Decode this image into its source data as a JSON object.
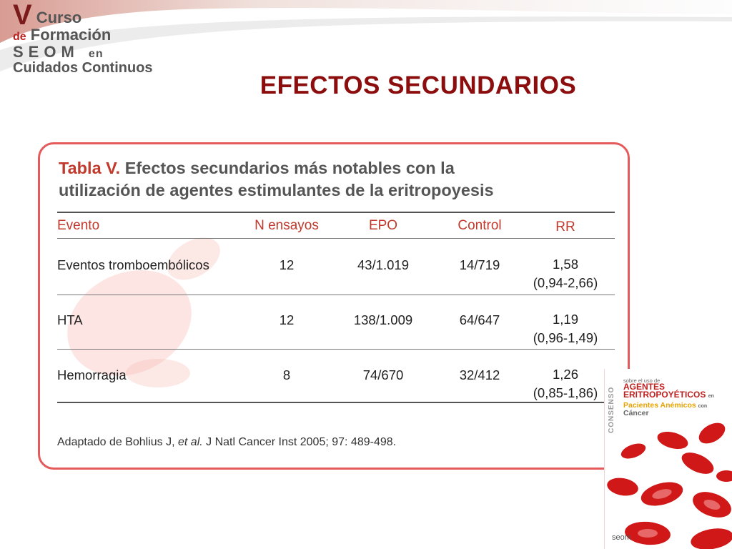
{
  "logo": {
    "line1_big": "V",
    "line1_word": "Curso",
    "line2_small": "de",
    "line2_word": "Formación",
    "line3_word": "SEOM",
    "line3_small": "en",
    "line4": "Cuidados Continuos"
  },
  "slide_title": "EFECTOS SECUNDARIOS",
  "table": {
    "title_number": "Tabla V.",
    "title_line1": "Efectos secundarios más notables con la",
    "title_line2": "utilización de agentes estimulantes de la eritropoyesis",
    "headers": [
      "Evento",
      "N ensayos",
      "EPO",
      "Control",
      "RR"
    ],
    "rows": [
      {
        "evento": "Eventos tromboembólicos",
        "n": "12",
        "epo": "43/1.019",
        "control": "14/719",
        "rr": "1,58",
        "ci": "(0,94-2,66)"
      },
      {
        "evento": "HTA",
        "n": "12",
        "epo": "138/1.009",
        "control": "64/647",
        "rr": "1,19",
        "ci": "(0,96-1,49)"
      },
      {
        "evento": "Hemorragia",
        "n": "8",
        "epo": "74/670",
        "control": "32/412",
        "rr": "1,26",
        "ci": "(0,85-1,86)"
      }
    ],
    "source_prefix": "Adaptado de Bohlius J,",
    "source_etal": "et al.",
    "source_suffix": "J Natl Cancer Inst 2005; 97: 489-498."
  },
  "book": {
    "vertical": "CONSENSO",
    "line1": "sobre el uso de",
    "line2a": "AGENTES",
    "line2b": "ERITROPOYÉTICOS",
    "line2b_small": "en",
    "line3": "Pacientes Anémicos",
    "line3_small": "con",
    "line4": "Cáncer",
    "seal": "seom"
  },
  "colors": {
    "title": "#8b0d0d",
    "accent": "#c0392b",
    "border": "#e55a5a"
  }
}
